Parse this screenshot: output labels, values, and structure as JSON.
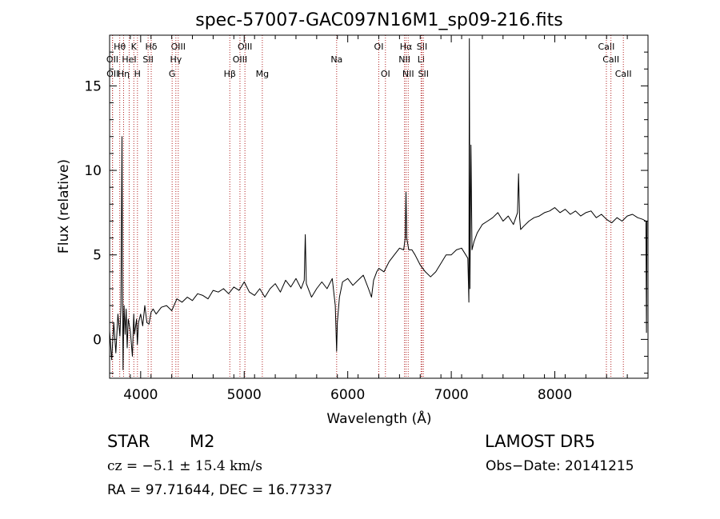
{
  "chart_data": {
    "type": "line",
    "title": "spec-57007-GAC097N16M1_sp09-216.fits",
    "xlabel": "Wavelength (Å)",
    "ylabel": "Flux (relative)",
    "xlim": [
      3700,
      8900
    ],
    "ylim": [
      -2.3,
      18
    ],
    "x_ticks": [
      4000,
      5000,
      6000,
      7000,
      8000
    ],
    "y_ticks": [
      0,
      5,
      10,
      15
    ],
    "grid": false,
    "series": [
      {
        "color": "#000000",
        "x": [
          3700,
          3720,
          3740,
          3760,
          3780,
          3800,
          3810,
          3820,
          3825,
          3830,
          3835,
          3840,
          3850,
          3860,
          3870,
          3880,
          3900,
          3920,
          3933,
          3940,
          3960,
          3968,
          3980,
          4000,
          4020,
          4040,
          4060,
          4080,
          4100,
          4120,
          4150,
          4200,
          4250,
          4300,
          4350,
          4400,
          4450,
          4500,
          4550,
          4600,
          4650,
          4700,
          4750,
          4800,
          4850,
          4900,
          4950,
          5000,
          5050,
          5100,
          5150,
          5200,
          5250,
          5300,
          5350,
          5400,
          5450,
          5500,
          5550,
          5580,
          5590,
          5600,
          5650,
          5700,
          5750,
          5800,
          5850,
          5880,
          5893,
          5900,
          5920,
          5950,
          6000,
          6050,
          6100,
          6150,
          6200,
          6230,
          6250,
          6280,
          6300,
          6350,
          6400,
          6450,
          6500,
          6540,
          6555,
          6563,
          6570,
          6590,
          6620,
          6650,
          6700,
          6750,
          6800,
          6850,
          6900,
          6950,
          7000,
          7050,
          7100,
          7140,
          7160,
          7170,
          7175,
          7180,
          7190,
          7200,
          7220,
          7250,
          7300,
          7350,
          7400,
          7450,
          7500,
          7550,
          7600,
          7640,
          7650,
          7660,
          7670,
          7700,
          7750,
          7800,
          7850,
          7900,
          7950,
          8000,
          8050,
          8100,
          8150,
          8200,
          8250,
          8300,
          8350,
          8400,
          8450,
          8500,
          8550,
          8600,
          8650,
          8700,
          8750,
          8800,
          8850,
          8880,
          8885,
          8890
        ],
        "y": [
          0.5,
          -1.2,
          1.0,
          -0.8,
          1.5,
          0.2,
          2.0,
          12.0,
          3.0,
          -1.8,
          0.8,
          2.0,
          0.3,
          1.8,
          -0.5,
          1.2,
          0.5,
          -1.0,
          1.5,
          0.3,
          1.2,
          -0.3,
          1.0,
          1.5,
          0.8,
          2.0,
          1.0,
          0.9,
          1.6,
          1.8,
          1.5,
          1.9,
          2.0,
          1.7,
          2.4,
          2.2,
          2.5,
          2.3,
          2.7,
          2.6,
          2.4,
          2.9,
          2.8,
          3.0,
          2.7,
          3.1,
          2.9,
          3.4,
          2.8,
          2.6,
          3.0,
          2.5,
          3.0,
          3.3,
          2.8,
          3.5,
          3.1,
          3.6,
          3.0,
          3.5,
          6.2,
          3.3,
          2.5,
          3.0,
          3.4,
          3.0,
          3.6,
          2.0,
          -0.7,
          1.0,
          2.5,
          3.4,
          3.6,
          3.2,
          3.5,
          3.8,
          3.0,
          2.5,
          3.5,
          4.0,
          4.2,
          4.0,
          4.6,
          5.0,
          5.4,
          5.3,
          6.0,
          8.7,
          6.0,
          5.3,
          5.3,
          5.0,
          4.4,
          4.0,
          3.7,
          4.0,
          4.5,
          5.0,
          5.0,
          5.3,
          5.4,
          5.0,
          4.8,
          2.2,
          17.8,
          3.0,
          11.5,
          5.3,
          5.8,
          6.3,
          6.8,
          7.0,
          7.2,
          7.5,
          7.0,
          7.3,
          6.8,
          7.5,
          9.8,
          7.2,
          6.5,
          6.7,
          7.0,
          7.2,
          7.3,
          7.5,
          7.6,
          7.8,
          7.5,
          7.7,
          7.4,
          7.6,
          7.3,
          7.5,
          7.6,
          7.2,
          7.4,
          7.1,
          6.9,
          7.2,
          7.0,
          7.3,
          7.4,
          7.2,
          7.1,
          7.0,
          0.4,
          7.0
        ]
      }
    ],
    "line_markers": [
      {
        "name": "Hθ",
        "x": 3798,
        "row": 0
      },
      {
        "name": "OII",
        "x": 3727,
        "row": 1
      },
      {
        "name": "OII",
        "x": 3729,
        "row": 2
      },
      {
        "name": "HeI",
        "x": 3889,
        "row": 1
      },
      {
        "name": "Hη",
        "x": 3835,
        "row": 2
      },
      {
        "name": "K",
        "x": 3934,
        "row": 0
      },
      {
        "name": "H",
        "x": 3969,
        "row": 2
      },
      {
        "name": "Hδ",
        "x": 4102,
        "row": 0
      },
      {
        "name": "SII",
        "x": 4072,
        "row": 1
      },
      {
        "name": "OIII",
        "x": 4363,
        "row": 0
      },
      {
        "name": "Hγ",
        "x": 4340,
        "row": 1
      },
      {
        "name": "G",
        "x": 4304,
        "row": 2
      },
      {
        "name": "Hβ",
        "x": 4861,
        "row": 2
      },
      {
        "name": "OIII",
        "x": 5007,
        "row": 0
      },
      {
        "name": "OIII",
        "x": 4959,
        "row": 1
      },
      {
        "name": "Mg",
        "x": 5175,
        "row": 2
      },
      {
        "name": "Na",
        "x": 5893,
        "row": 1
      },
      {
        "name": "OI",
        "x": 6300,
        "row": 0
      },
      {
        "name": "OI",
        "x": 6364,
        "row": 2
      },
      {
        "name": "Hα",
        "x": 6563,
        "row": 0
      },
      {
        "name": "NII",
        "x": 6548,
        "row": 1
      },
      {
        "name": "NII",
        "x": 6584,
        "row": 2
      },
      {
        "name": "SII",
        "x": 6717,
        "row": 0
      },
      {
        "name": "Li",
        "x": 6708,
        "row": 1
      },
      {
        "name": "SII",
        "x": 6731,
        "row": 2
      },
      {
        "name": "CaII",
        "x": 8498,
        "row": 0
      },
      {
        "name": "CaII",
        "x": 8542,
        "row": 1
      },
      {
        "name": "CaII",
        "x": 8662,
        "row": 2
      }
    ]
  },
  "info": {
    "object_class": "STAR",
    "subclass": "M2",
    "survey": "LAMOST DR5",
    "cz": "cz = −5.1 ± 15.4 km/s",
    "obs_date": "Obs−Date: 20141215",
    "coords": "RA =  97.71644, DEC =  16.77337"
  },
  "colors": {
    "spectrum": "#000000",
    "marker_line": "#b22222",
    "axes": "#000000"
  }
}
